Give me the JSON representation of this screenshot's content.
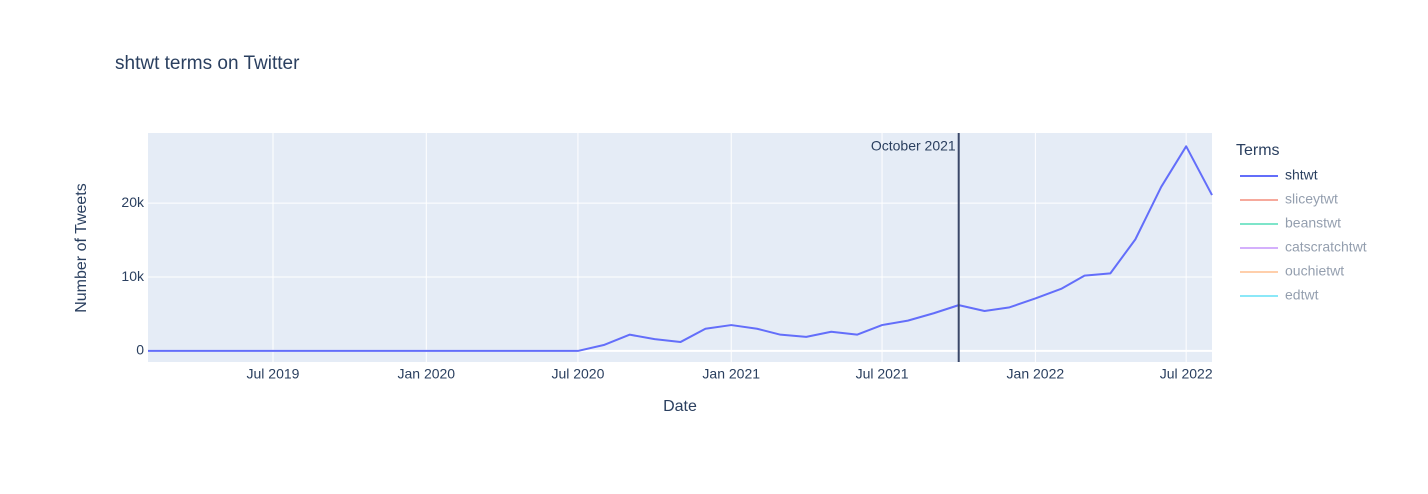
{
  "chart_data": {
    "type": "line",
    "title": "shtwt terms on Twitter",
    "x_label": "Date",
    "y_label": "Number of Tweets",
    "x": [
      "2019-02",
      "2019-03",
      "2019-04",
      "2019-05",
      "2019-06",
      "2019-07",
      "2019-08",
      "2019-09",
      "2019-10",
      "2019-11",
      "2019-12",
      "2020-01",
      "2020-02",
      "2020-03",
      "2020-04",
      "2020-05",
      "2020-06",
      "2020-07",
      "2020-08",
      "2020-09",
      "2020-10",
      "2020-11",
      "2020-12",
      "2021-01",
      "2021-02",
      "2021-03",
      "2021-04",
      "2021-05",
      "2021-06",
      "2021-07",
      "2021-08",
      "2021-09",
      "2021-10",
      "2021-11",
      "2021-12",
      "2022-01",
      "2022-02",
      "2022-03",
      "2022-04",
      "2022-05",
      "2022-06",
      "2022-07",
      "2022-08"
    ],
    "series": [
      {
        "name": "shtwt",
        "color": "#636efa",
        "values": [
          0,
          0,
          0,
          0,
          0,
          0,
          0,
          0,
          0,
          0,
          0,
          0,
          0,
          0,
          0,
          0,
          0,
          0,
          800,
          2200,
          1600,
          1200,
          3000,
          3500,
          3000,
          2200,
          1900,
          2600,
          2200,
          3500,
          4100,
          5100,
          6200,
          5400,
          5900,
          7100,
          8400,
          10200,
          10500,
          15100,
          22200,
          27700,
          21100
        ]
      },
      {
        "name": "sliceytwt",
        "color": "#ef553b",
        "visible": "legendonly"
      },
      {
        "name": "beanstwt",
        "color": "#00cc96",
        "visible": "legendonly"
      },
      {
        "name": "catscratchtwt",
        "color": "#ab63fa",
        "visible": "legendonly"
      },
      {
        "name": "ouchietwt",
        "color": "#ffa15a",
        "visible": "legendonly"
      },
      {
        "name": "edtwt",
        "color": "#19d3f3",
        "visible": "legendonly"
      }
    ],
    "legend_title": "Terms",
    "legend_position": "right",
    "xlim": [
      "2019-02",
      "2022-08"
    ],
    "xticks": [
      {
        "value": "2019-07",
        "label": "Jul 2019"
      },
      {
        "value": "2020-01",
        "label": "Jan 2020"
      },
      {
        "value": "2020-07",
        "label": "Jul 2020"
      },
      {
        "value": "2021-01",
        "label": "Jan 2021"
      },
      {
        "value": "2021-07",
        "label": "Jul 2021"
      },
      {
        "value": "2022-01",
        "label": "Jan 2022"
      },
      {
        "value": "2022-07",
        "label": "Jul 2022"
      }
    ],
    "ylim": [
      -1500,
      29500
    ],
    "yticks": [
      0,
      {
        "value": 10000,
        "label": "10k"
      },
      {
        "value": 20000,
        "label": "20k"
      }
    ],
    "grid": true,
    "vline": {
      "x": "2021-10",
      "label": "October 2021",
      "color": "#3a4768"
    }
  }
}
